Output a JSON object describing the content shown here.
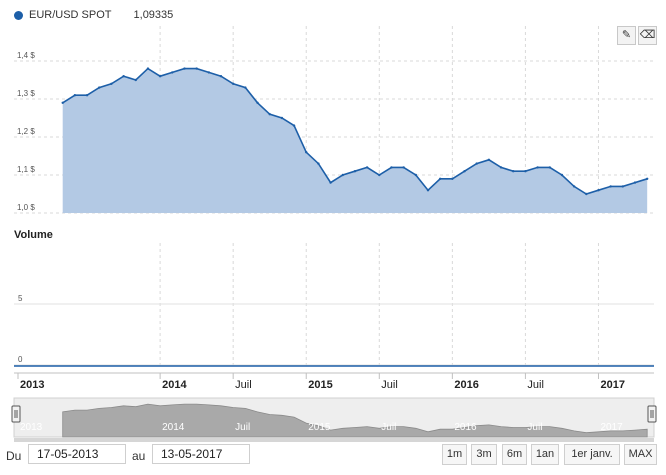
{
  "legend": {
    "name": "EUR/USD SPOT",
    "value": "1,09335",
    "color": "#1d5fa8"
  },
  "toolbar": {
    "draw_icon": "pencil-icon",
    "erase_icon": "eraser-icon"
  },
  "volume_title": "Volume",
  "inputs": {
    "from_label": "Du",
    "from_value": "17-05-2013",
    "to_label": "au",
    "to_value": "13-05-2017"
  },
  "range_buttons": [
    "1m",
    "3m",
    "6m",
    "1an",
    "1er janv.",
    "MAX"
  ],
  "chart_data": [
    {
      "type": "area",
      "series": [
        {
          "name": "EUR/USD SPOT",
          "color": "#1d5fa8"
        }
      ],
      "x_dates": [
        "2013-05",
        "2013-06",
        "2013-07",
        "2013-08",
        "2013-09",
        "2013-10",
        "2013-11",
        "2013-12",
        "2014-01",
        "2014-02",
        "2014-03",
        "2014-04",
        "2014-05",
        "2014-06",
        "2014-07",
        "2014-08",
        "2014-09",
        "2014-10",
        "2014-11",
        "2014-12",
        "2015-01",
        "2015-02",
        "2015-03",
        "2015-04",
        "2015-05",
        "2015-06",
        "2015-07",
        "2015-08",
        "2015-09",
        "2015-10",
        "2015-11",
        "2015-12",
        "2016-01",
        "2016-02",
        "2016-03",
        "2016-04",
        "2016-05",
        "2016-06",
        "2016-07",
        "2016-08",
        "2016-09",
        "2016-10",
        "2016-11",
        "2016-12",
        "2017-01",
        "2017-02",
        "2017-03",
        "2017-04",
        "2017-05"
      ],
      "values": [
        1.29,
        1.31,
        1.31,
        1.33,
        1.34,
        1.36,
        1.35,
        1.38,
        1.36,
        1.37,
        1.38,
        1.38,
        1.37,
        1.36,
        1.34,
        1.33,
        1.29,
        1.26,
        1.25,
        1.23,
        1.16,
        1.13,
        1.08,
        1.1,
        1.11,
        1.12,
        1.1,
        1.12,
        1.12,
        1.1,
        1.06,
        1.09,
        1.09,
        1.11,
        1.13,
        1.14,
        1.12,
        1.11,
        1.11,
        1.12,
        1.12,
        1.1,
        1.07,
        1.05,
        1.06,
        1.07,
        1.07,
        1.08,
        1.09
      ],
      "y_ticks": [
        "1,0 $",
        "1,1 $",
        "1,2 $",
        "1,3 $",
        "1,4 $"
      ],
      "y_tick_values": [
        1.0,
        1.1,
        1.2,
        1.3,
        1.4
      ],
      "ylim": [
        1.0,
        1.45
      ],
      "grid": true
    },
    {
      "type": "bar",
      "title": "Volume",
      "y_ticks": [
        "0",
        "5"
      ],
      "y_tick_values": [
        0,
        5
      ],
      "ylim": [
        0,
        10
      ],
      "values": []
    }
  ],
  "x_axis_labels": [
    {
      "label": "2013",
      "bold": true,
      "date": "2013-01"
    },
    {
      "label": "2014",
      "bold": true,
      "date": "2014-01"
    },
    {
      "label": "Juil",
      "bold": false,
      "date": "2014-07"
    },
    {
      "label": "2015",
      "bold": true,
      "date": "2015-01"
    },
    {
      "label": "Juil",
      "bold": false,
      "date": "2015-07"
    },
    {
      "label": "2016",
      "bold": true,
      "date": "2016-01"
    },
    {
      "label": "Juil",
      "bold": false,
      "date": "2016-07"
    },
    {
      "label": "2017",
      "bold": true,
      "date": "2017-01"
    }
  ],
  "navigator_labels": [
    {
      "label": "2013",
      "date": "2013-01"
    },
    {
      "label": "2014",
      "date": "2014-01"
    },
    {
      "label": "Juil",
      "date": "2014-07"
    },
    {
      "label": "2015",
      "date": "2015-01"
    },
    {
      "label": "Juil",
      "date": "2015-07"
    },
    {
      "label": "2016",
      "date": "2016-01"
    },
    {
      "label": "Juil",
      "date": "2016-07"
    },
    {
      "label": "2017",
      "date": "2017-01"
    }
  ]
}
